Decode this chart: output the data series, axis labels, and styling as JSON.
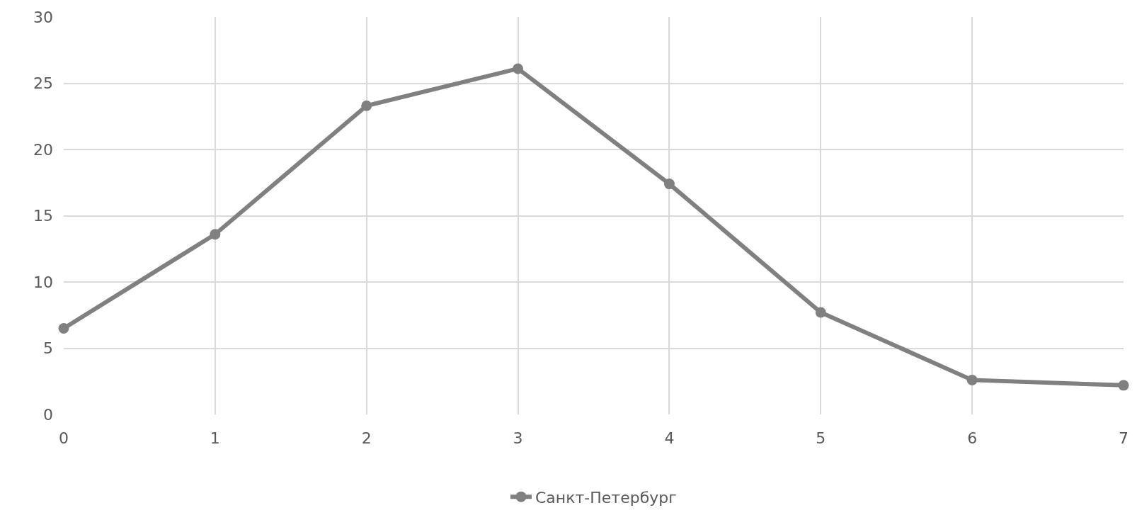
{
  "chart_data": {
    "type": "line",
    "x": [
      0,
      1,
      2,
      3,
      4,
      5,
      6,
      7
    ],
    "series": [
      {
        "name": "Санкт-Петербург",
        "color": "#808080",
        "values": [
          6.5,
          13.6,
          23.3,
          26.1,
          17.4,
          7.7,
          2.6,
          2.2
        ]
      }
    ],
    "xlim": [
      0,
      7
    ],
    "xticks": [
      0,
      1,
      2,
      3,
      4,
      5,
      6,
      7
    ],
    "ylim": [
      0,
      30
    ],
    "yticks": [
      0,
      5,
      10,
      15,
      20,
      25,
      30
    ],
    "grid": true,
    "legend": "bottom",
    "marker": "circle",
    "line_style": "solid"
  }
}
